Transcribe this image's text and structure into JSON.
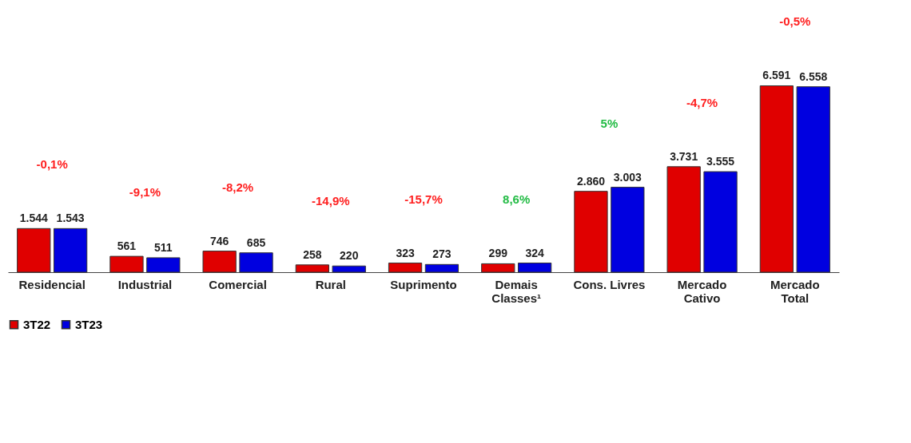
{
  "chart_data": {
    "type": "bar",
    "categories": [
      "Residencial",
      "Industrial",
      "Comercial",
      "Rural",
      "Suprimento",
      "Demais Classes¹",
      "Cons. Livres",
      "Mercado Cativo",
      "Mercado Total"
    ],
    "series": [
      {
        "name": "3T22",
        "color": "#e00000",
        "values": [
          1544,
          561,
          746,
          258,
          323,
          299,
          2860,
          3731,
          6591
        ],
        "value_labels": [
          "1.544",
          "561",
          "746",
          "258",
          "323",
          "299",
          "2.860",
          "3.731",
          "6.591"
        ]
      },
      {
        "name": "3T23",
        "color": "#0000e0",
        "values": [
          1543,
          511,
          685,
          220,
          273,
          324,
          3003,
          3555,
          6558
        ],
        "value_labels": [
          "1.543",
          "511",
          "685",
          "220",
          "273",
          "324",
          "3.003",
          "3.555",
          "6.558"
        ]
      }
    ],
    "annotations": [
      "-0,1%",
      "-9,1%",
      "-8,2%",
      "-14,9%",
      "-15,7%",
      "8,6%",
      "5%",
      "-4,7%",
      "-0,5%"
    ],
    "legend": "bottom",
    "grid": false
  }
}
